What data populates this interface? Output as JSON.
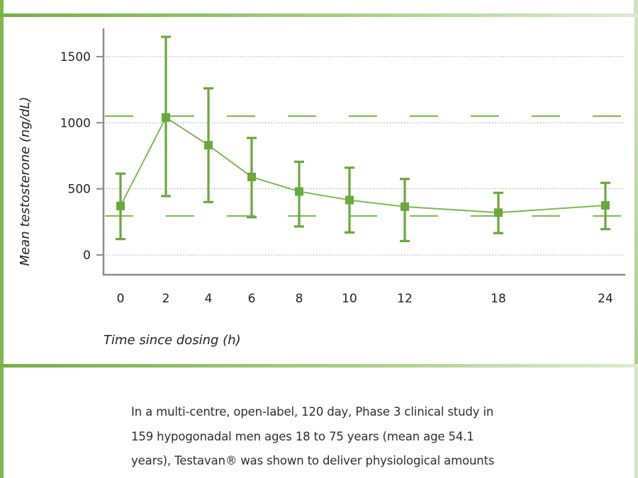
{
  "chart_data": {
    "type": "line",
    "xlabel": "Time since dosing (h)",
    "ylabel": "Mean testosterone (ng/dL)",
    "x": [
      0,
      2,
      4,
      6,
      8,
      10,
      12,
      18,
      24
    ],
    "series": [
      {
        "values": [
          370,
          1040,
          830,
          590,
          480,
          415,
          365,
          320,
          375
        ],
        "error_low": [
          120,
          445,
          400,
          285,
          215,
          170,
          105,
          165,
          195
        ],
        "error_high": [
          615,
          1650,
          1260,
          885,
          705,
          660,
          575,
          470,
          545
        ]
      }
    ],
    "reference_lines": [
      1050,
      295
    ],
    "yticks": [
      0,
      500,
      1000,
      1500
    ],
    "xticks": [
      0,
      2,
      4,
      6,
      8,
      10,
      12,
      18,
      24
    ],
    "ylim": [
      -150,
      1700
    ],
    "grid": "horizontal dotted",
    "line_color": "#6aa83c",
    "reference_color": "#7fbf4f",
    "marker": "square"
  },
  "description": {
    "lines": [
      "In a multi-centre, open-label, 120 day, Phase 3 clinical study in",
      "159 hypogonadal men ages 18 to 75 years (mean age 54.1",
      "years), Testavan® was shown to deliver physiological amounts"
    ]
  }
}
